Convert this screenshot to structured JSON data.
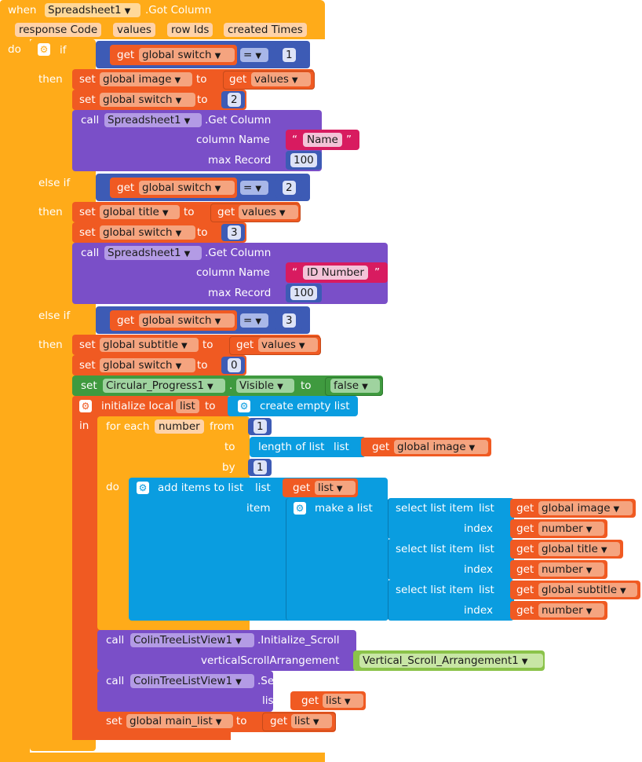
{
  "event": {
    "when": "when",
    "component": "Spreadsheet1",
    "event_name": ".Got Column",
    "params": [
      "response Code",
      "values",
      "row Ids",
      "created Times"
    ],
    "do": "do"
  },
  "kw": {
    "if": "if",
    "then": "then",
    "else_if": "else if",
    "get": "get",
    "set": "set",
    "to": "to",
    "call": "call",
    "eq": "=",
    "column_name": "column Name",
    "max_record": "max Record",
    "get_column": ".Get Column",
    "in": "in",
    "for_each": "for each",
    "from": "from",
    "by": "by",
    "do": "do",
    "list": "list",
    "item": "item",
    "index": "index",
    "dot": "."
  },
  "branches": [
    {
      "cond_var": "global switch",
      "cond_val": "1",
      "set_var": "global image",
      "set_from": "values",
      "switch_val": "2",
      "sheet": "Spreadsheet1",
      "column": "Name",
      "max": "100"
    },
    {
      "cond_var": "global switch",
      "cond_val": "2",
      "set_var": "global title",
      "set_from": "values",
      "switch_val": "3",
      "sheet": "Spreadsheet1",
      "column": "ID Number",
      "max": "100"
    },
    {
      "cond_var": "global switch",
      "cond_val": "3",
      "set_var": "global subtitle",
      "set_from": "values",
      "switch_val": "0"
    }
  ],
  "progress": {
    "component": "Circular_Progress1",
    "property": "Visible",
    "value": "false"
  },
  "local": {
    "label": "initialize local",
    "name": "list",
    "create": "create empty list"
  },
  "loop": {
    "var": "number",
    "from": "1",
    "to_label": "length of list",
    "to_var": "global image",
    "by": "1"
  },
  "add_items": {
    "label": "add items to list",
    "list_var": "list",
    "make_list": "make a list",
    "select": "select list item",
    "rows": [
      {
        "list": "global image",
        "index": "number"
      },
      {
        "list": "global title",
        "index": "number"
      },
      {
        "list": "global subtitle",
        "index": "number"
      }
    ]
  },
  "calls": {
    "listview": "ColinTreeListView1",
    "init_scroll": ".Initialize_Scroll",
    "scroll_param": "verticalScrollArrangement",
    "scroll_component": "Vertical_Scroll_Arrangement1",
    "set_method": ".Set",
    "set_list_param": "list",
    "set_list_var": "list",
    "main_list_var": "global main_list",
    "main_list_from": "list"
  },
  "colors": {
    "control": "#ffab19",
    "variables": "#f05a22",
    "component_call": "#7a4fc8",
    "compare": "#3d5bb5",
    "text": "#d81b60",
    "lists": "#0a9de0",
    "setter": "#3f9a3f",
    "component": "#8bc34a"
  }
}
